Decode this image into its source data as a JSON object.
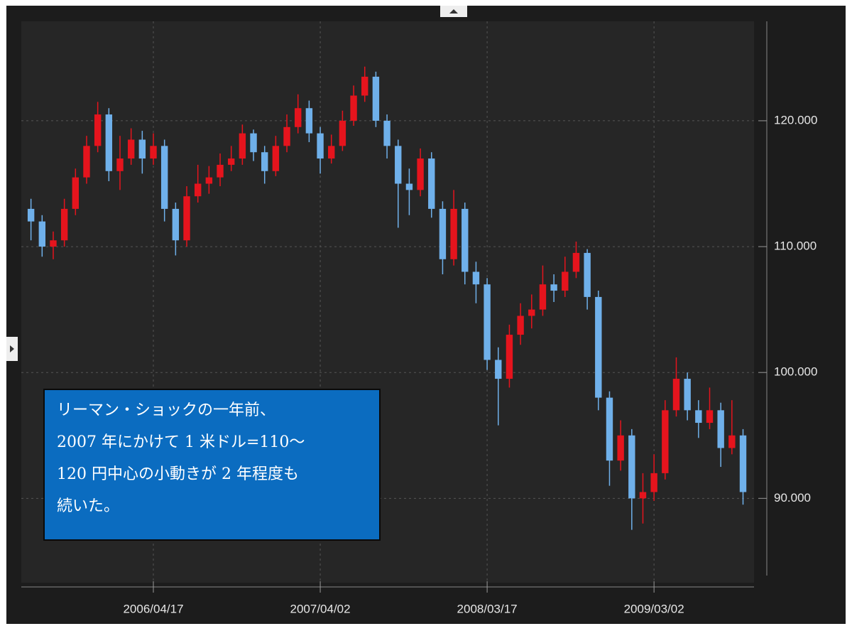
{
  "chart_data": {
    "type": "candlestick",
    "categories": [
      null,
      null,
      null,
      null,
      null,
      null,
      null,
      null,
      null,
      null,
      null,
      "2006/04/17",
      null,
      null,
      null,
      null,
      null,
      null,
      null,
      null,
      null,
      null,
      null,
      null,
      null,
      null,
      "2007/04/02",
      null,
      null,
      null,
      null,
      null,
      null,
      null,
      null,
      null,
      null,
      null,
      null,
      null,
      null,
      "2008/03/17",
      null,
      null,
      null,
      null,
      null,
      null,
      null,
      null,
      null,
      null,
      null,
      null,
      null,
      null,
      "2009/03/02",
      null,
      null,
      null,
      null,
      null,
      null,
      null,
      null
    ],
    "open": [
      113,
      112,
      110,
      110.5,
      113,
      115.5,
      118,
      120.5,
      116,
      117,
      118.5,
      117,
      118,
      113,
      110.5,
      114,
      115,
      115.5,
      116.5,
      117,
      119,
      117.5,
      116,
      118,
      119.5,
      121,
      119,
      117,
      118,
      120,
      122,
      123.5,
      120,
      118,
      115,
      114.5,
      117,
      113,
      109,
      113,
      108,
      107,
      101,
      99.5,
      103,
      104.5,
      105,
      107,
      106.5,
      108,
      109.5,
      106,
      98,
      93,
      95,
      90,
      90.5,
      92,
      97,
      99.5,
      97,
      96,
      97,
      94,
      95
    ],
    "high": [
      113.8,
      112.5,
      111.2,
      113.8,
      116.2,
      118.8,
      121.5,
      121,
      118.8,
      119.4,
      119.2,
      119,
      118.5,
      113.5,
      114.8,
      116.5,
      116.4,
      117.4,
      118,
      119.7,
      119.3,
      118,
      118.8,
      120.5,
      122.1,
      121.6,
      119.5,
      118.9,
      120.8,
      122.8,
      124.3,
      123.9,
      120.5,
      118.5,
      116.2,
      117.8,
      117.5,
      113.6,
      114.5,
      113.5,
      108.8,
      107.5,
      102,
      103.8,
      105.5,
      106.2,
      108.5,
      107.8,
      109.2,
      110.4,
      109.8,
      106.5,
      98.5,
      96.2,
      95.5,
      92,
      93.5,
      97.8,
      101.2,
      100,
      97.8,
      98.8,
      97.6,
      97.8,
      95.5
    ],
    "low": [
      110.5,
      109.2,
      109,
      110,
      112.5,
      115,
      117.5,
      115.2,
      114.5,
      116.5,
      115.8,
      116.5,
      112,
      109.3,
      110,
      113.5,
      114.2,
      114.8,
      116,
      116.5,
      116.8,
      115,
      115.6,
      117.5,
      119,
      118.3,
      115.8,
      116.6,
      117.6,
      119.6,
      121.5,
      119.5,
      117,
      111.5,
      112.5,
      114,
      112.3,
      107.8,
      108.5,
      107,
      105.5,
      100.2,
      95.8,
      98.8,
      102.2,
      103.5,
      104.5,
      105.6,
      106,
      107.5,
      105,
      97,
      91,
      92.2,
      87.5,
      88,
      89.8,
      91.5,
      96.5,
      96.2,
      94.8,
      95.5,
      92.5,
      93.5,
      89.5
    ],
    "close": [
      112,
      110,
      110.5,
      113,
      115.5,
      118,
      120.5,
      116,
      117,
      118.5,
      117,
      118,
      113,
      110.5,
      114,
      115,
      115.5,
      116.5,
      117,
      119,
      117.5,
      116,
      118,
      119.5,
      121,
      119,
      117,
      118,
      120,
      122,
      123.5,
      120,
      118,
      115,
      114.5,
      117,
      113,
      109,
      113,
      108,
      107,
      101,
      99.5,
      103,
      104.5,
      105,
      107,
      106.5,
      108,
      109.5,
      106,
      98,
      93,
      95,
      90,
      90.5,
      92,
      97,
      99.5,
      97,
      96,
      97,
      94,
      95,
      90.5
    ],
    "up_color": "#e5141d",
    "down_color": "#6fb0ea",
    "ylim": [
      83.3,
      127.9
    ],
    "yticks": [
      {
        "value": 90,
        "label": "90.000"
      },
      {
        "value": 100,
        "label": "100.000"
      },
      {
        "value": 110,
        "label": "110.000"
      },
      {
        "value": 120,
        "label": "120.000"
      }
    ],
    "grid": true,
    "annotation": [
      "リーマン・ショックの一年前、",
      "2007 年にかけて 1 米ドル=110～",
      "120 円中心の小動きが 2 年程度も",
      "続いた。"
    ]
  }
}
